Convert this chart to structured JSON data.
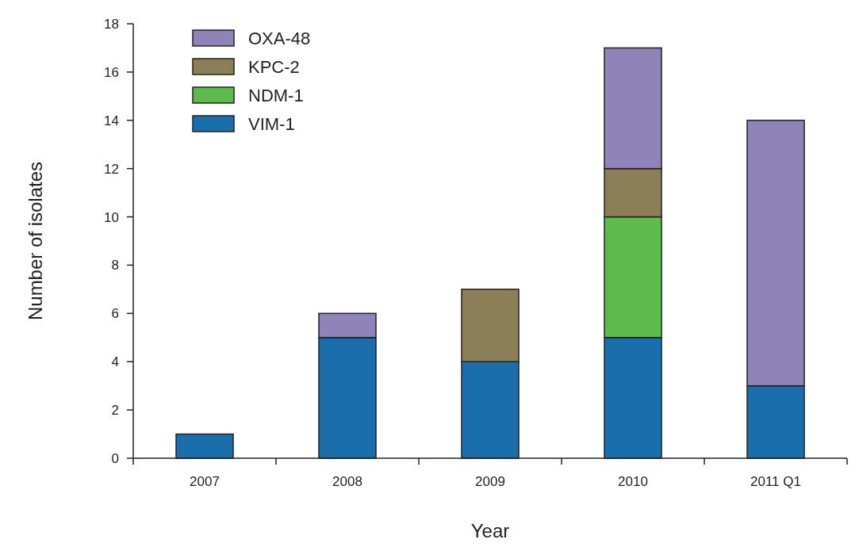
{
  "chart_data": {
    "type": "bar",
    "stacked": true,
    "xlabel": "Year",
    "ylabel": "Number of isolates",
    "categories": [
      "2007",
      "2008",
      "2009",
      "2010",
      "2011 Q1"
    ],
    "series": [
      {
        "name": "VIM-1",
        "color": "#1a6eab",
        "values": [
          1,
          5,
          4,
          5,
          3
        ]
      },
      {
        "name": "NDM-1",
        "color": "#5dbb4c",
        "values": [
          0,
          0,
          0,
          5,
          0
        ]
      },
      {
        "name": "KPC-2",
        "color": "#8c7e57",
        "values": [
          0,
          0,
          3,
          2,
          0
        ]
      },
      {
        "name": "OXA-48",
        "color": "#8f83b9",
        "values": [
          0,
          1,
          0,
          5,
          11
        ]
      }
    ],
    "ylim": [
      0,
      18
    ],
    "yticks": [
      0,
      2,
      4,
      6,
      8,
      10,
      12,
      14,
      16,
      18
    ],
    "grid": false,
    "legend": "top left"
  }
}
